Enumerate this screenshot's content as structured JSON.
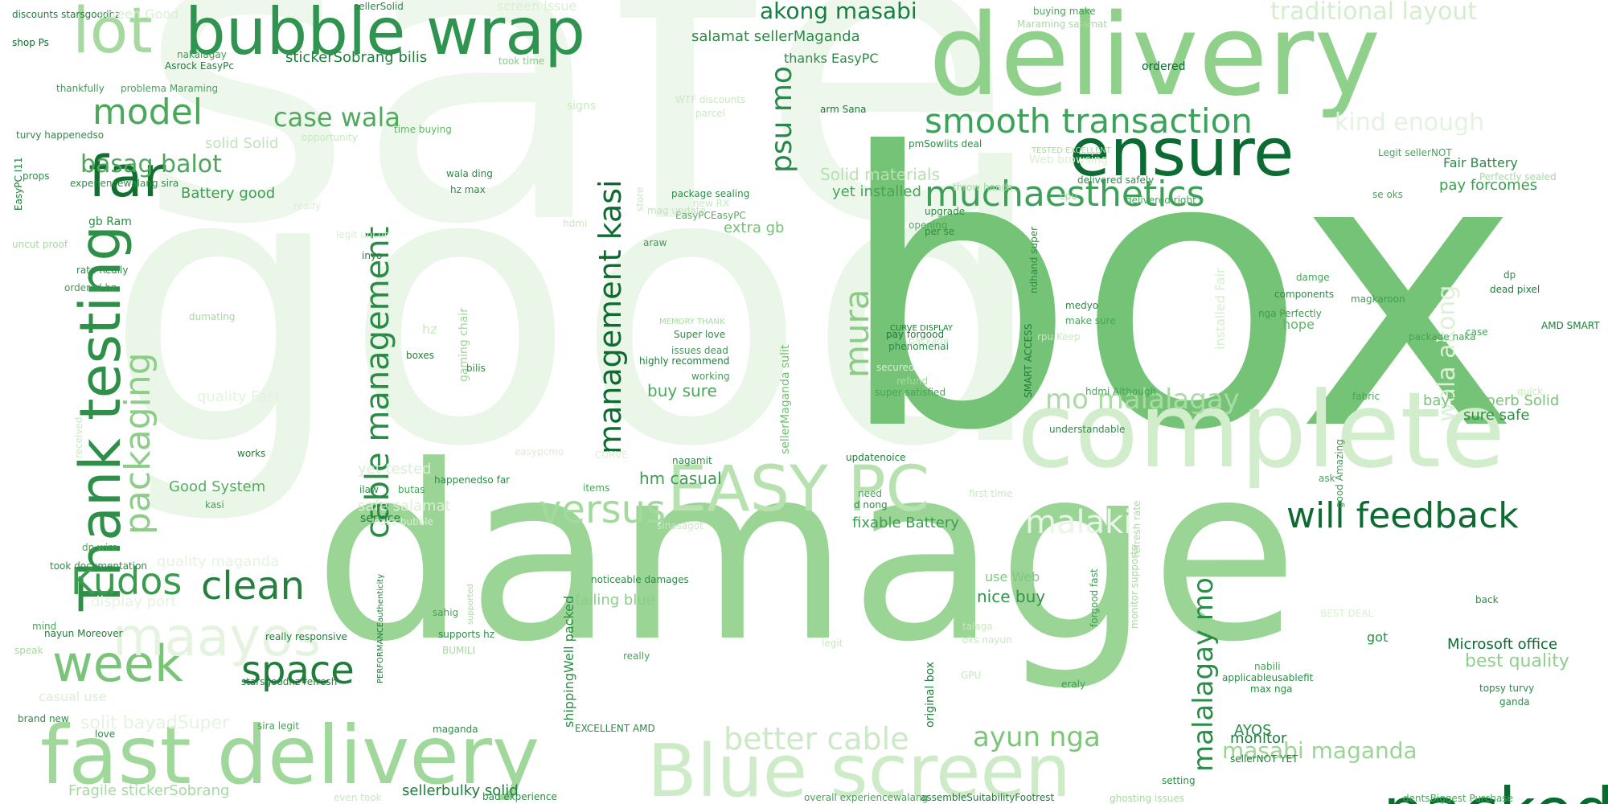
{
  "words": [
    {
      "text": "safe",
      "color": "#eef7ec"
    },
    {
      "text": "good",
      "color": "#eaf6e7"
    },
    {
      "text": "box",
      "color": "#74c376"
    },
    {
      "text": "damage",
      "color": "#9ad595"
    },
    {
      "text": "delivery",
      "color": "#8fd08a"
    },
    {
      "text": "complete",
      "color": "#d2edcc"
    },
    {
      "text": "fast delivery",
      "color": "#a0d89b"
    },
    {
      "text": "Blue screen",
      "color": "#cdebc6"
    },
    {
      "text": "bubble wrap",
      "color": "#2f944f"
    },
    {
      "text": "ensure",
      "color": "#0b6b32"
    },
    {
      "text": "packed",
      "color": "#046c2d"
    },
    {
      "text": "EASY PC",
      "color": "#b7e2b0"
    },
    {
      "text": "Thank testing",
      "color": "#2d8f48"
    },
    {
      "text": "week",
      "color": "#7ac47a"
    },
    {
      "text": "maayos",
      "color": "#e5f4e1"
    },
    {
      "text": "lot",
      "color": "#a6d9a0"
    },
    {
      "text": "far",
      "color": "#10712f"
    },
    {
      "text": "model",
      "color": "#4ba85a"
    },
    {
      "text": "smooth transaction",
      "color": "#3ba25a"
    },
    {
      "text": "muchaesthetics",
      "color": "#3d9f58"
    },
    {
      "text": "will feedback",
      "color": "#0c6b30"
    },
    {
      "text": "clean",
      "color": "#267f3f"
    },
    {
      "text": "space",
      "color": "#1f7d39"
    },
    {
      "text": "Kudos",
      "color": "#3b9b4f"
    },
    {
      "text": "packaging",
      "color": "#8ccd87"
    },
    {
      "text": "cable management",
      "color": "#288c45"
    },
    {
      "text": "management kasi",
      "color": "#0c6c2f"
    },
    {
      "text": "versus",
      "color": "#a3d99d"
    },
    {
      "text": "mura",
      "color": "#8acc86"
    },
    {
      "text": "psu mo",
      "color": "#27894a"
    },
    {
      "text": "akong masabi",
      "color": "#168043"
    },
    {
      "text": "traditional layout",
      "color": "#d3edcd"
    },
    {
      "text": "kind enough",
      "color": "#e3f3df"
    },
    {
      "text": "mo malalagay",
      "color": "#a9dca3"
    },
    {
      "text": "malaki",
      "color": "#eaf6e7"
    },
    {
      "text": "better cable",
      "color": "#cbe9c4"
    },
    {
      "text": "ayun nga",
      "color": "#7cc579"
    },
    {
      "text": "malalagay mo",
      "color": "#2a8d47"
    },
    {
      "text": "masabi maganda",
      "color": "#9cd496"
    },
    {
      "text": "case wala",
      "color": "#51ab5e"
    },
    {
      "text": "basag balot",
      "color": "#4ca65b"
    },
    {
      "text": "wala akong",
      "color": "#ddf1d8"
    },
    {
      "text": "Fair Battery",
      "color": "#2b8c45"
    },
    {
      "text": "pay forcomes",
      "color": "#3b9c4f"
    },
    {
      "text": "Fast shippingWell",
      "color": "#1c7d39"
    },
    {
      "text": "Microsoft office",
      "color": "#0b6b30"
    },
    {
      "text": "best quality",
      "color": "#8ed08b"
    },
    {
      "text": "AYOS",
      "color": "#2a8b45"
    },
    {
      "text": "monitor",
      "color": "#1e7d3a"
    },
    {
      "text": "sure safe",
      "color": "#2f9048"
    },
    {
      "text": "bayadSuperb Solid",
      "color": "#77c378"
    },
    {
      "text": "nice buy",
      "color": "#32934b"
    },
    {
      "text": "fixable Battery",
      "color": "#3d9e51"
    },
    {
      "text": "buy sure",
      "color": "#4ba85a"
    },
    {
      "text": "hm casual",
      "color": "#3b9d53"
    },
    {
      "text": "Good System",
      "color": "#56ad62"
    },
    {
      "text": "Battery good",
      "color": "#3e9f52"
    },
    {
      "text": "solid Solid",
      "color": "#bfe5b8"
    },
    {
      "text": "yet installed",
      "color": "#46a459"
    },
    {
      "text": "Solid materials",
      "color": "#b7e1b0"
    },
    {
      "text": "extra gb",
      "color": "#73c174"
    },
    {
      "text": "salamat sellerMaganda",
      "color": "#2b8c46"
    },
    {
      "text": "thanks EasyPC",
      "color": "#2c8c46"
    },
    {
      "text": "stickerSobrang bilis",
      "color": "#20803c"
    },
    {
      "text": "Fragile stickerSobrang",
      "color": "#a6d9a0"
    },
    {
      "text": "sellerbulky solid",
      "color": "#1e7d3a"
    },
    {
      "text": "shippingWell packed",
      "color": "#2c8c46"
    },
    {
      "text": "failing blue",
      "color": "#8ccd87"
    },
    {
      "text": "original box",
      "color": "#1f7f3b"
    },
    {
      "text": "sellerMaganda sulit",
      "color": "#70bf71"
    },
    {
      "text": "installed Fair",
      "color": "#d5eecf"
    },
    {
      "text": "quality Fast",
      "color": "#e3f3df"
    },
    {
      "text": "yet tested",
      "color": "#d8efd2"
    },
    {
      "text": "ordered",
      "color": "#0a6a2f"
    },
    {
      "text": "Web browsing",
      "color": "#d9efd3"
    },
    {
      "text": "hope",
      "color": "#5fb566"
    },
    {
      "text": "got",
      "color": "#2c8c46"
    },
    {
      "text": "use Web",
      "color": "#82c880"
    },
    {
      "text": "gaming chair",
      "color": "#9dd598"
    },
    {
      "text": "Asrock EasyPc",
      "color": "#1f7d3a"
    },
    {
      "text": "thankfully",
      "color": "#3c9d51"
    },
    {
      "text": "problema Maraming",
      "color": "#46a458"
    },
    {
      "text": "shop Ps",
      "color": "#0b6b30"
    },
    {
      "text": "discounts starsgoodhz",
      "color": "#1f7d3a"
    },
    {
      "text": "nakalagay",
      "color": "#3d9e51"
    },
    {
      "text": "took time",
      "color": "#86cb82"
    },
    {
      "text": "time buying",
      "color": "#5fb566"
    },
    {
      "text": "wala ding",
      "color": "#2c8c46"
    },
    {
      "text": "hz max",
      "color": "#2c8c46"
    },
    {
      "text": "package sealing",
      "color": "#2c8c46"
    },
    {
      "text": "EasyPCEasyPC",
      "color": "#56ad62"
    },
    {
      "text": "mag update",
      "color": "#bfe5b8"
    },
    {
      "text": "arm Sana",
      "color": "#1f7d3a"
    },
    {
      "text": "pmSowlits deal",
      "color": "#2c8c46"
    },
    {
      "text": "throw hands",
      "color": "#a6d9a0"
    },
    {
      "text": "delivered safely",
      "color": "#2c8c46"
    },
    {
      "text": "delivered right",
      "color": "#46a458"
    },
    {
      "text": "upgrade",
      "color": "#2c8c46"
    },
    {
      "text": "opening",
      "color": "#46a458"
    },
    {
      "text": "per se",
      "color": "#2c8c46"
    },
    {
      "text": "araw",
      "color": "#3c9d51"
    },
    {
      "text": "inyo",
      "color": "#1f7d3a"
    },
    {
      "text": "rate Really",
      "color": "#2c8c46"
    },
    {
      "text": "ordered hz",
      "color": "#3c9d51"
    },
    {
      "text": "dumating",
      "color": "#a6d9a0"
    },
    {
      "text": "MEMORY THANK",
      "color": "#a6d9a0"
    },
    {
      "text": "Super love",
      "color": "#2c8c46"
    },
    {
      "text": "issues dead",
      "color": "#3c9d51"
    },
    {
      "text": "highly recommend",
      "color": "#1f7d3a"
    },
    {
      "text": "working",
      "color": "#3c9d51"
    },
    {
      "text": "pay forgood",
      "color": "#1f7d3a"
    },
    {
      "text": "phenomenal",
      "color": "#2c8c46"
    },
    {
      "text": "CURVE DISPLAY",
      "color": "#1f7d3a"
    },
    {
      "text": "package",
      "color": "#c7e9c0"
    },
    {
      "text": "refund",
      "color": "#a6d9a0"
    },
    {
      "text": "super satisfied",
      "color": "#46a458"
    },
    {
      "text": "secured",
      "color": "#d9efd3"
    },
    {
      "text": "nagamit",
      "color": "#2c8c46"
    },
    {
      "text": "medyo",
      "color": "#2c8c46"
    },
    {
      "text": "make sure",
      "color": "#46a458"
    },
    {
      "text": "rpu Keep",
      "color": "#c7e9c0"
    },
    {
      "text": "nga Perfectly",
      "color": "#3c9d51"
    },
    {
      "text": "components",
      "color": "#2c8c46"
    },
    {
      "text": "damge",
      "color": "#46a458"
    },
    {
      "text": "magkaroon",
      "color": "#3c9d51"
    },
    {
      "text": "dead pixel",
      "color": "#1f7d3a"
    },
    {
      "text": "case",
      "color": "#46a458"
    },
    {
      "text": "AMD SMART",
      "color": "#1f7d3a"
    },
    {
      "text": "package naka",
      "color": "#46a458"
    },
    {
      "text": "dp",
      "color": "#2c8c46"
    },
    {
      "text": "Perfectly sealed",
      "color": "#a6d9a0"
    },
    {
      "text": "Legit sellerNOT",
      "color": "#46a458"
    },
    {
      "text": "TESTED EXCELLENT",
      "color": "#a6d9a0"
    },
    {
      "text": "cpu",
      "color": "#a6d9a0"
    },
    {
      "text": "se oks",
      "color": "#46a458"
    },
    {
      "text": "ndhand super",
      "color": "#2c8c46"
    },
    {
      "text": "SMART ACCESS",
      "color": "#1f7d3a"
    },
    {
      "text": "hdmi Although",
      "color": "#46a458"
    },
    {
      "text": "understandable",
      "color": "#2c8c46"
    },
    {
      "text": "fabric",
      "color": "#46a458"
    },
    {
      "text": "quick",
      "color": "#c7e9c0"
    },
    {
      "text": "good Amazing",
      "color": "#3c9d51"
    },
    {
      "text": "ask",
      "color": "#46a458"
    },
    {
      "text": "refresh rate",
      "color": "#a6d9a0"
    },
    {
      "text": "monitor supports",
      "color": "#a6d9a0"
    },
    {
      "text": "forgood fast",
      "color": "#3c9d51"
    },
    {
      "text": "setting",
      "color": "#2c8c46"
    },
    {
      "text": "eraly",
      "color": "#3c9d51"
    },
    {
      "text": "max nga",
      "color": "#2c8c46"
    },
    {
      "text": "applicableusablefit",
      "color": "#2c8c46"
    },
    {
      "text": "nabili",
      "color": "#46a458"
    },
    {
      "text": "topsy turvy",
      "color": "#2c8c46"
    },
    {
      "text": "ganda",
      "color": "#2c8c46"
    },
    {
      "text": "back",
      "color": "#2c8c46"
    },
    {
      "text": "sellerNOT YET",
      "color": "#1f7d3a"
    },
    {
      "text": "dentsBiggest Purchase",
      "color": "#46a458"
    },
    {
      "text": "ghosting issues",
      "color": "#a6d9a0"
    },
    {
      "text": "overall experiencewalang",
      "color": "#46a458"
    },
    {
      "text": "assembleSuitabilityFootrest",
      "color": "#1f7d3a"
    },
    {
      "text": "bad experience",
      "color": "#2c8c46"
    },
    {
      "text": "even took",
      "color": "#c7e9c0"
    },
    {
      "text": "love",
      "color": "#2c8c46"
    },
    {
      "text": "brand new",
      "color": "#2c8c46"
    },
    {
      "text": "sira legit",
      "color": "#46a458"
    },
    {
      "text": "maganda",
      "color": "#2c8c46"
    },
    {
      "text": "EXCELLENT AMD",
      "color": "#2c8c46"
    },
    {
      "text": "really",
      "color": "#46a458"
    },
    {
      "text": "starsgoodhz refresh",
      "color": "#1f7d3a"
    },
    {
      "text": "really responsive",
      "color": "#1f7d3a"
    },
    {
      "text": "nayun Moreover",
      "color": "#1f7d3a"
    },
    {
      "text": "supports hz",
      "color": "#2c8c46"
    },
    {
      "text": "BUMILI",
      "color": "#a6d9a0"
    },
    {
      "text": "PERFORMANCEauthenticity",
      "color": "#1f7d3a"
    },
    {
      "text": "supported",
      "color": "#a6d9a0"
    },
    {
      "text": "sahig",
      "color": "#46a458"
    },
    {
      "text": "noticeable damages",
      "color": "#2c8c46"
    },
    {
      "text": "service",
      "color": "#1f7d3a"
    },
    {
      "text": "kasi",
      "color": "#46a458"
    },
    {
      "text": "ilaw",
      "color": "#2c8c46"
    },
    {
      "text": "butas",
      "color": "#46a458"
    },
    {
      "text": "happenedso far",
      "color": "#2c8c46"
    },
    {
      "text": "items",
      "color": "#46a458"
    },
    {
      "text": "need",
      "color": "#46a458"
    },
    {
      "text": "d nong",
      "color": "#2c8c46"
    },
    {
      "text": "updatenoice",
      "color": "#1f7d3a"
    },
    {
      "text": "first time",
      "color": "#c7e9c0"
    },
    {
      "text": "works",
      "color": "#1f7d3a"
    },
    {
      "text": "received",
      "color": "#c7e9c0"
    },
    {
      "text": "took documentation",
      "color": "#2c8c46"
    },
    {
      "text": "dp wire",
      "color": "#46a458"
    },
    {
      "text": "mind",
      "color": "#46a458"
    },
    {
      "text": "speak",
      "color": "#a6d9a0"
    },
    {
      "text": "casual use",
      "color": "#d9efd3"
    },
    {
      "text": "turvy happenedso",
      "color": "#2c8c46"
    },
    {
      "text": "props",
      "color": "#2c8c46"
    },
    {
      "text": "experiencewalang sira",
      "color": "#2c8c46"
    },
    {
      "text": "EasyPC I11",
      "color": "#1f7d3a"
    },
    {
      "text": "gb Ram",
      "color": "#2c8c46"
    },
    {
      "text": "uncut proof",
      "color": "#a6d9a0"
    },
    {
      "text": "hz",
      "color": "#c7e9c0"
    },
    {
      "text": "boxes",
      "color": "#1f7d3a"
    },
    {
      "text": "bilis",
      "color": "#2c8c46"
    },
    {
      "text": "hdmi",
      "color": "#c7e9c0"
    },
    {
      "text": "WTF discounts",
      "color": "#c7e9c0"
    },
    {
      "text": "parcel",
      "color": "#c7e9c0"
    },
    {
      "text": "signs",
      "color": "#c7e9c0"
    },
    {
      "text": "screen Good",
      "color": "#d9efd3"
    },
    {
      "text": "screen issue",
      "color": "#d9efd3"
    },
    {
      "text": "sellerSolid",
      "color": "#2c8c46"
    },
    {
      "text": "buying make",
      "color": "#46a458"
    },
    {
      "text": "Maraming salamat",
      "color": "#a6d9a0"
    },
    {
      "text": "opportunity",
      "color": "#c7e9c0"
    },
    {
      "text": "new RX",
      "color": "#c7e9c0"
    },
    {
      "text": "store",
      "color": "#c7e9c0"
    },
    {
      "text": "ready",
      "color": "#d9efd3"
    },
    {
      "text": "legit uncut",
      "color": "#d9efd3"
    },
    {
      "text": "easypcmo",
      "color": "#d9efd3"
    },
    {
      "text": "CURVE",
      "color": "#d9efd3"
    },
    {
      "text": "safe salamat",
      "color": "#d9efd3"
    },
    {
      "text": "naka bubble",
      "color": "#d9efd3"
    },
    {
      "text": "quality maganda",
      "color": "#e5f4e1"
    },
    {
      "text": "display port",
      "color": "#e5f4e1"
    },
    {
      "text": "solit bayadSuper",
      "color": "#e5f4e1"
    },
    {
      "text": "sinasagot",
      "color": "#c7e9c0"
    },
    {
      "text": "legit",
      "color": "#c7e9c0"
    },
    {
      "text": "GPU",
      "color": "#c7e9c0"
    },
    {
      "text": "talaga",
      "color": "#c7e9c0"
    },
    {
      "text": "oks nayun",
      "color": "#c7e9c0"
    },
    {
      "text": "BEST DEAL",
      "color": "#d9efd3"
    }
  ]
}
